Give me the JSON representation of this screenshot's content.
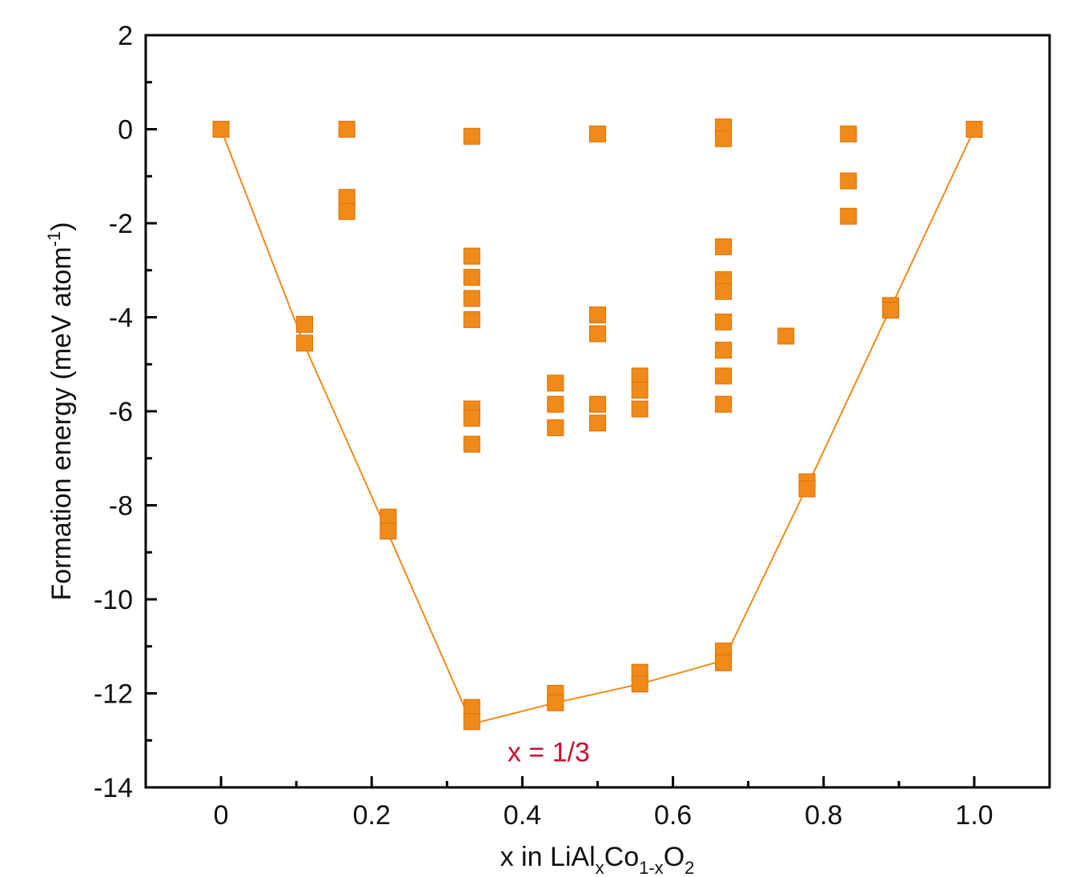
{
  "chart_data": {
    "type": "scatter",
    "title": "",
    "xlabel": {
      "prefix": "x in LiAl",
      "sub1": "x",
      "mid": "Co",
      "sub2": "1-x",
      "mid2": "O",
      "sub3": "2"
    },
    "ylabel": {
      "main": "Formation energy (meV atom",
      "sup": "-1",
      "end": ")"
    },
    "xlim": [
      -0.1,
      1.1
    ],
    "ylim": [
      -14,
      2
    ],
    "xticks": [
      0,
      0.2,
      0.4,
      0.6,
      0.8,
      1.0
    ],
    "xtick_labels": [
      "0",
      "0.2",
      "0.4",
      "0.6",
      "0.8",
      "1.0"
    ],
    "xminor": [
      0.1,
      0.3,
      0.5,
      0.7,
      0.9
    ],
    "yticks": [
      2,
      0,
      -2,
      -4,
      -6,
      -8,
      -10,
      -12,
      -14
    ],
    "ytick_labels": [
      "2",
      "0",
      "-2",
      "-4",
      "-6",
      "-8",
      "-10",
      "-12",
      "-14"
    ],
    "yminor": [
      1,
      -1,
      -3,
      -5,
      -7,
      -9,
      -11,
      -13
    ],
    "color": "#f08a18",
    "annotation_color": "#c8102e",
    "series": [
      {
        "name": "structures",
        "points": [
          {
            "x": 0,
            "y": 0
          },
          {
            "x": 0.111,
            "y": -4.15
          },
          {
            "x": 0.111,
            "y": -4.55
          },
          {
            "x": 0.167,
            "y": 0
          },
          {
            "x": 0.167,
            "y": -1.45
          },
          {
            "x": 0.167,
            "y": -1.75
          },
          {
            "x": 0.222,
            "y": -8.25
          },
          {
            "x": 0.222,
            "y": -8.55
          },
          {
            "x": 0.333,
            "y": -0.15
          },
          {
            "x": 0.333,
            "y": -2.7
          },
          {
            "x": 0.333,
            "y": -3.15
          },
          {
            "x": 0.333,
            "y": -3.6
          },
          {
            "x": 0.333,
            "y": -4.05
          },
          {
            "x": 0.333,
            "y": -5.95
          },
          {
            "x": 0.333,
            "y": -6.15
          },
          {
            "x": 0.333,
            "y": -6.7
          },
          {
            "x": 0.333,
            "y": -12.3
          },
          {
            "x": 0.333,
            "y": -12.6
          },
          {
            "x": 0.444,
            "y": -5.4
          },
          {
            "x": 0.444,
            "y": -5.85
          },
          {
            "x": 0.444,
            "y": -6.35
          },
          {
            "x": 0.444,
            "y": -12.0
          },
          {
            "x": 0.444,
            "y": -12.2
          },
          {
            "x": 0.5,
            "y": -0.1
          },
          {
            "x": 0.5,
            "y": -3.95
          },
          {
            "x": 0.5,
            "y": -4.35
          },
          {
            "x": 0.5,
            "y": -5.85
          },
          {
            "x": 0.5,
            "y": -6.25
          },
          {
            "x": 0.556,
            "y": -5.25
          },
          {
            "x": 0.556,
            "y": -5.55
          },
          {
            "x": 0.556,
            "y": -5.95
          },
          {
            "x": 0.556,
            "y": -11.55
          },
          {
            "x": 0.556,
            "y": -11.8
          },
          {
            "x": 0.667,
            "y": 0.05
          },
          {
            "x": 0.667,
            "y": -0.2
          },
          {
            "x": 0.667,
            "y": -2.5
          },
          {
            "x": 0.667,
            "y": -3.2
          },
          {
            "x": 0.667,
            "y": -3.45
          },
          {
            "x": 0.667,
            "y": -4.1
          },
          {
            "x": 0.667,
            "y": -4.7
          },
          {
            "x": 0.667,
            "y": -5.25
          },
          {
            "x": 0.667,
            "y": -5.85
          },
          {
            "x": 0.667,
            "y": -11.1
          },
          {
            "x": 0.667,
            "y": -11.35
          },
          {
            "x": 0.75,
            "y": -4.4
          },
          {
            "x": 0.778,
            "y": -7.5
          },
          {
            "x": 0.778,
            "y": -7.65
          },
          {
            "x": 0.833,
            "y": -0.1
          },
          {
            "x": 0.833,
            "y": -1.1
          },
          {
            "x": 0.833,
            "y": -1.85
          },
          {
            "x": 0.889,
            "y": -3.75
          },
          {
            "x": 0.889,
            "y": -3.85
          },
          {
            "x": 1.0,
            "y": 0
          }
        ]
      }
    ],
    "hull": [
      {
        "x": 0,
        "y": 0
      },
      {
        "x": 0.111,
        "y": -4.6
      },
      {
        "x": 0.222,
        "y": -8.6
      },
      {
        "x": 0.333,
        "y": -12.65
      },
      {
        "x": 0.444,
        "y": -12.2
      },
      {
        "x": 0.556,
        "y": -11.8
      },
      {
        "x": 0.667,
        "y": -11.3
      },
      {
        "x": 0.778,
        "y": -7.6
      },
      {
        "x": 0.889,
        "y": -3.8
      },
      {
        "x": 1.0,
        "y": 0
      }
    ],
    "annotation": {
      "text": "x = 1/3",
      "x": 0.435,
      "y": -13.45
    }
  }
}
